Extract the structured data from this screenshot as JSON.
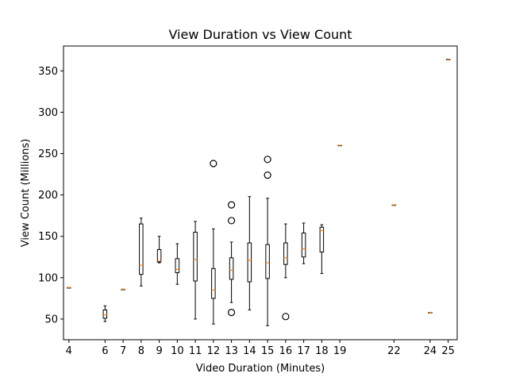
{
  "chart_data": {
    "type": "box",
    "title": "View Duration vs View Count",
    "xlabel": "Video Duration (Minutes)",
    "ylabel": "View Count (Millions)",
    "xlim": [
      3.7,
      25.5
    ],
    "ylim": [
      25,
      380
    ],
    "xticks": [
      4,
      6,
      7,
      8,
      9,
      10,
      11,
      12,
      13,
      14,
      15,
      16,
      17,
      18,
      19,
      22,
      24,
      25
    ],
    "yticks": [
      50,
      100,
      150,
      200,
      250,
      300,
      350
    ],
    "grid": false,
    "colors": {
      "median": "#ff7f0e",
      "box": "#000000"
    },
    "boxes": [
      {
        "x": 4,
        "q1": 88,
        "median": 88,
        "q3": 88,
        "whislo": 88,
        "whishi": 88,
        "fliers": []
      },
      {
        "x": 6,
        "q1": 51,
        "median": 55,
        "q3": 61,
        "whislo": 47,
        "whishi": 66,
        "fliers": []
      },
      {
        "x": 7,
        "q1": 86,
        "median": 86,
        "q3": 86,
        "whislo": 86,
        "whishi": 86,
        "fliers": []
      },
      {
        "x": 8,
        "q1": 104,
        "median": 115,
        "q3": 165,
        "whislo": 90,
        "whishi": 172,
        "fliers": []
      },
      {
        "x": 9,
        "q1": 119,
        "median": 120,
        "q3": 134,
        "whislo": 118,
        "whishi": 150,
        "fliers": []
      },
      {
        "x": 10,
        "q1": 106,
        "median": 110,
        "q3": 123,
        "whislo": 92,
        "whishi": 141,
        "fliers": []
      },
      {
        "x": 11,
        "q1": 96,
        "median": 122,
        "q3": 155,
        "whislo": 50,
        "whishi": 168,
        "fliers": []
      },
      {
        "x": 12,
        "q1": 75,
        "median": 85,
        "q3": 111,
        "whislo": 44,
        "whishi": 159,
        "fliers": [
          238
        ]
      },
      {
        "x": 13,
        "q1": 98,
        "median": 109,
        "q3": 124,
        "whislo": 70,
        "whishi": 143,
        "fliers": [
          58,
          169,
          188
        ]
      },
      {
        "x": 14,
        "q1": 95,
        "median": 121,
        "q3": 142,
        "whislo": 61,
        "whishi": 198,
        "fliers": []
      },
      {
        "x": 15,
        "q1": 99,
        "median": 118,
        "q3": 140,
        "whislo": 42,
        "whishi": 196,
        "fliers": [
          224,
          243
        ]
      },
      {
        "x": 16,
        "q1": 116,
        "median": 124,
        "q3": 142,
        "whislo": 100,
        "whishi": 165,
        "fliers": [
          53
        ]
      },
      {
        "x": 17,
        "q1": 125,
        "median": 135,
        "q3": 154,
        "whislo": 117,
        "whishi": 166,
        "fliers": []
      },
      {
        "x": 18,
        "q1": 131,
        "median": 157,
        "q3": 161,
        "whislo": 105,
        "whishi": 164,
        "fliers": []
      },
      {
        "x": 19,
        "q1": 260,
        "median": 260,
        "q3": 260,
        "whislo": 260,
        "whishi": 260,
        "fliers": []
      },
      {
        "x": 22,
        "q1": 188,
        "median": 188,
        "q3": 188,
        "whislo": 188,
        "whishi": 188,
        "fliers": []
      },
      {
        "x": 24,
        "q1": 58,
        "median": 58,
        "q3": 58,
        "whislo": 58,
        "whishi": 58,
        "fliers": []
      },
      {
        "x": 25,
        "q1": 364,
        "median": 364,
        "q3": 364,
        "whislo": 364,
        "whishi": 364,
        "fliers": []
      }
    ]
  }
}
